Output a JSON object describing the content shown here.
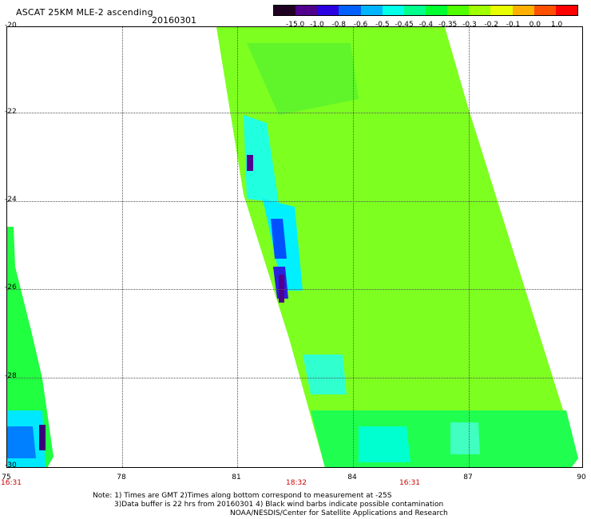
{
  "header": {
    "title": "ASCAT 25KM MLE-2 ascending",
    "date": "20160301"
  },
  "colorbar": {
    "labels": [
      "-15.0",
      "-1.0",
      "-0.8",
      "-0.6",
      "-0.5",
      "-0.45",
      "-0.4",
      "-0.35",
      "-0.3",
      "-0.2",
      "-0.1",
      "0.0",
      "1.0"
    ],
    "colors": [
      "#200020",
      "#50008c",
      "#2a00e0",
      "#0060ff",
      "#00b4ff",
      "#00ffe8",
      "#00ff8c",
      "#00ff30",
      "#50ff00",
      "#a0ff00",
      "#e8ff00",
      "#ffb000",
      "#ff5000",
      "#ff0000"
    ]
  },
  "axes": {
    "y_ticks": [
      "-20",
      "-22",
      "-24",
      "-26",
      "-28",
      "-30"
    ],
    "x_ticks": [
      "75",
      "78",
      "81",
      "84",
      "87",
      "90"
    ],
    "time_labels": [
      {
        "text": "16:31",
        "lon": 75
      },
      {
        "text": "18:32",
        "lon": 82.5
      },
      {
        "text": "16:31",
        "lon": 85.5
      }
    ]
  },
  "notes": {
    "line1": "Note: 1) Times are GMT 2)Times along bottom correspond to measurement at -25S",
    "line2": "3)Data buffer is 22 hrs from 20160301 4) Black wind barbs indicate possible contamination",
    "line3": "NOAA/NESDIS/Center for Satellite Applications and Research"
  }
}
